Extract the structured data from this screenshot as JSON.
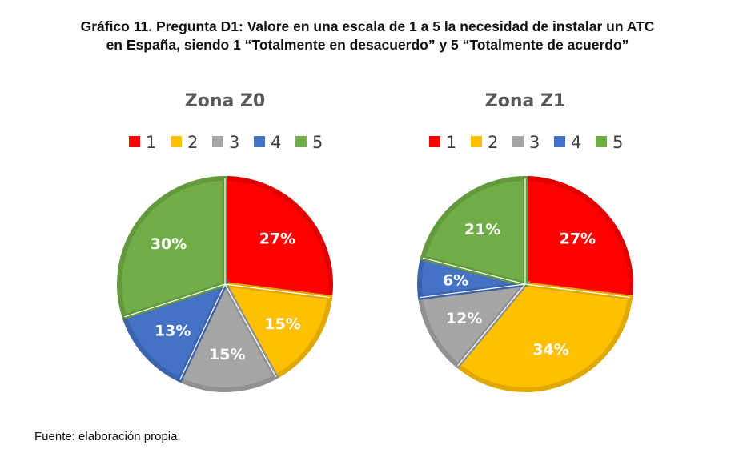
{
  "title_line1": "Gráfico 11. Pregunta D1: Valore en una escala de 1 a 5 la necesidad de instalar un ATC",
  "title_line2": "en España, siendo 1 “Totalmente en desacuerdo” y 5 “Totalmente de acuerdo”",
  "source": "Fuente: elaboración propia.",
  "chart_data": [
    {
      "type": "pie",
      "title": "Zona Z0",
      "categories": [
        "1",
        "2",
        "3",
        "4",
        "5"
      ],
      "values": [
        27,
        15,
        15,
        13,
        30
      ],
      "data_labels": [
        "27%",
        "15%",
        "15%",
        "13%",
        "30%"
      ],
      "colors": [
        "#ff0000",
        "#ffc000",
        "#a5a5a5",
        "#4472c4",
        "#70ad47"
      ],
      "legend": "top"
    },
    {
      "type": "pie",
      "title": "Zona Z1",
      "categories": [
        "1",
        "2",
        "3",
        "4",
        "5"
      ],
      "values": [
        27,
        34,
        12,
        6,
        21
      ],
      "data_labels": [
        "27%",
        "34%",
        "12%",
        "6%",
        "21%"
      ],
      "colors": [
        "#ff0000",
        "#ffc000",
        "#a5a5a5",
        "#4472c4",
        "#70ad47"
      ],
      "legend": "top"
    }
  ]
}
